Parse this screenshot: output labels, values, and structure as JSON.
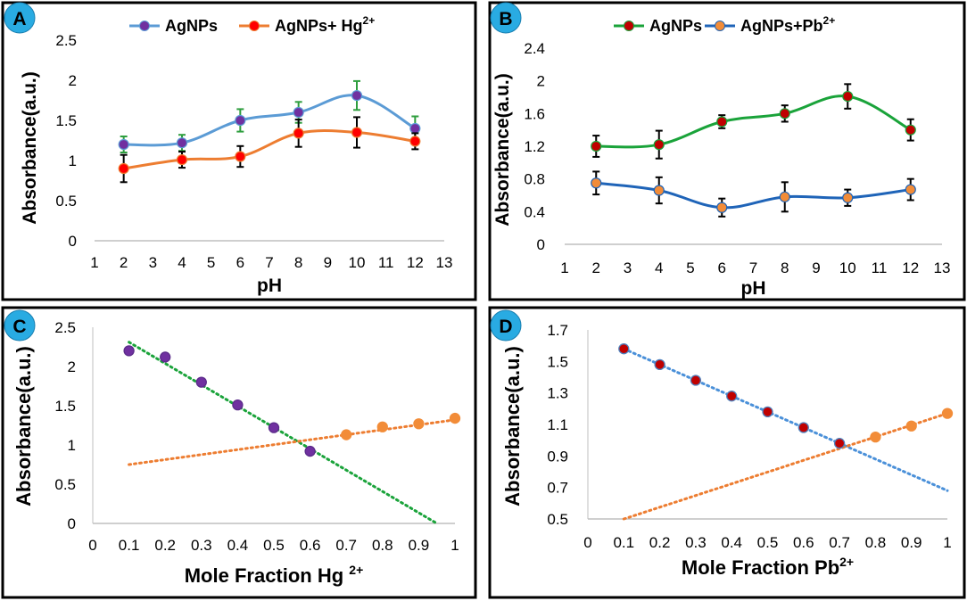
{
  "chart_data": [
    {
      "id": "A",
      "panel_label": "A",
      "type": "line",
      "xlabel": "pH",
      "ylabel": "Absorbance(a.u.)",
      "xlim": [
        1,
        13
      ],
      "ylim": [
        0,
        2.5
      ],
      "x_ticks": [
        "1",
        "2",
        "3",
        "4",
        "5",
        "6",
        "7",
        "8",
        "9",
        "10",
        "11",
        "12",
        "13"
      ],
      "y_ticks": [
        "0",
        "0.5",
        "1",
        "1.5",
        "2",
        "2.5"
      ],
      "x": [
        2,
        4,
        6,
        8,
        10,
        12
      ],
      "series": [
        {
          "name": "AgNPs",
          "legend_main": "AgNPs",
          "legend_sup": "",
          "color": "#5b9bd5",
          "marker_color": "#7030a0",
          "err_color": "#2e9e3e",
          "values": [
            1.2,
            1.22,
            1.5,
            1.6,
            1.81,
            1.4
          ],
          "errors": [
            0.1,
            0.1,
            0.14,
            0.13,
            0.18,
            0.15
          ]
        },
        {
          "name": "AgNPs+ Hg2+",
          "legend_main": "AgNPs+ Hg",
          "legend_sup": "2+",
          "color": "#ed7d31",
          "marker_color": "#ff0000",
          "err_color": "#000000",
          "values": [
            0.9,
            1.01,
            1.05,
            1.34,
            1.35,
            1.24
          ],
          "errors": [
            0.17,
            0.1,
            0.13,
            0.17,
            0.19,
            0.1
          ]
        }
      ]
    },
    {
      "id": "B",
      "panel_label": "B",
      "type": "line",
      "xlabel": "pH",
      "ylabel": "Absorbance(a.u.)",
      "xlim": [
        1,
        13
      ],
      "ylim": [
        0,
        2.4
      ],
      "x_ticks": [
        "1",
        "2",
        "3",
        "4",
        "5",
        "6",
        "7",
        "8",
        "9",
        "10",
        "11",
        "12",
        "13"
      ],
      "y_ticks": [
        "0",
        "0.4",
        "0.8",
        "1.2",
        "1.6",
        "2",
        "2.4"
      ],
      "x": [
        2,
        4,
        6,
        8,
        10,
        12
      ],
      "series": [
        {
          "name": "AgNPs",
          "legend_main": "AgNPs",
          "legend_sup": "",
          "color": "#1aa33a",
          "marker_color": "#c00000",
          "err_color": "#000000",
          "values": [
            1.2,
            1.22,
            1.5,
            1.6,
            1.81,
            1.4
          ],
          "errors": [
            0.13,
            0.17,
            0.08,
            0.1,
            0.15,
            0.13
          ]
        },
        {
          "name": "AgNPs+Pb2+",
          "legend_main": "AgNPs+Pb",
          "legend_sup": "2+",
          "color": "#1f64b8",
          "marker_color": "#f28c38",
          "err_color": "#000000",
          "values": [
            0.75,
            0.66,
            0.45,
            0.58,
            0.57,
            0.67
          ],
          "errors": [
            0.14,
            0.16,
            0.11,
            0.18,
            0.1,
            0.13
          ]
        }
      ]
    },
    {
      "id": "C",
      "panel_label": "C",
      "type": "scatter",
      "xlabel": "Mole Fraction Hg ",
      "xlabel_sup": "2+",
      "ylabel": "Absorbance(a.u.)",
      "xlim": [
        0,
        1
      ],
      "ylim": [
        0,
        2.5
      ],
      "x_ticks": [
        "0",
        "0.1",
        "0.2",
        "0.3",
        "0.4",
        "0.5",
        "0.6",
        "0.7",
        "0.8",
        "0.9",
        "1"
      ],
      "y_ticks": [
        "0",
        "0.5",
        "1",
        "1.5",
        "2",
        "2.5"
      ],
      "series": [
        {
          "name": "decreasing",
          "color": "#7030a0",
          "stroke": "#5b2b8a",
          "trend_color": "#1aa33a",
          "x": [
            0.1,
            0.2,
            0.3,
            0.4,
            0.5,
            0.6
          ],
          "values": [
            2.2,
            2.12,
            1.8,
            1.51,
            1.22,
            0.92
          ],
          "trend": {
            "x0": 0.1,
            "y0": 2.31,
            "x1": 0.95,
            "y1": 0.0
          }
        },
        {
          "name": "increasing",
          "color": "#f28c38",
          "stroke": "#f28c38",
          "trend_color": "#ed7d31",
          "x": [
            0.7,
            0.8,
            0.9,
            1.0
          ],
          "values": [
            1.13,
            1.23,
            1.27,
            1.34
          ],
          "trend": {
            "x0": 0.1,
            "y0": 0.75,
            "x1": 1.0,
            "y1": 1.32
          }
        }
      ]
    },
    {
      "id": "D",
      "panel_label": "D",
      "type": "scatter",
      "xlabel": "Mole Fraction Pb",
      "xlabel_sup": "2+",
      "ylabel": "Absorbance(a.u.)",
      "xlim": [
        0,
        1
      ],
      "ylim": [
        0.5,
        1.7
      ],
      "x_ticks": [
        "0",
        "0.1",
        "0.2",
        "0.3",
        "0.4",
        "0.5",
        "0.6",
        "0.7",
        "0.8",
        "0.9",
        "1"
      ],
      "y_ticks": [
        "0.5",
        "0.7",
        "0.9",
        "1.1",
        "1.3",
        "1.5",
        "1.7"
      ],
      "series": [
        {
          "name": "decreasing",
          "color": "#c00000",
          "stroke": "#4f81bd",
          "trend_color": "#4a90d9",
          "x": [
            0.1,
            0.2,
            0.3,
            0.4,
            0.5,
            0.6,
            0.7
          ],
          "values": [
            1.58,
            1.48,
            1.38,
            1.28,
            1.18,
            1.08,
            0.98
          ],
          "trend": {
            "x0": 0.1,
            "y0": 1.58,
            "x1": 1.0,
            "y1": 0.68
          }
        },
        {
          "name": "increasing",
          "color": "#f28c38",
          "stroke": "#f28c38",
          "trend_color": "#ed7d31",
          "x": [
            0.8,
            0.9,
            1.0
          ],
          "values": [
            1.02,
            1.09,
            1.17
          ],
          "trend": {
            "x0": 0.1,
            "y0": 0.5,
            "x1": 1.0,
            "y1": 1.17
          }
        }
      ]
    }
  ]
}
